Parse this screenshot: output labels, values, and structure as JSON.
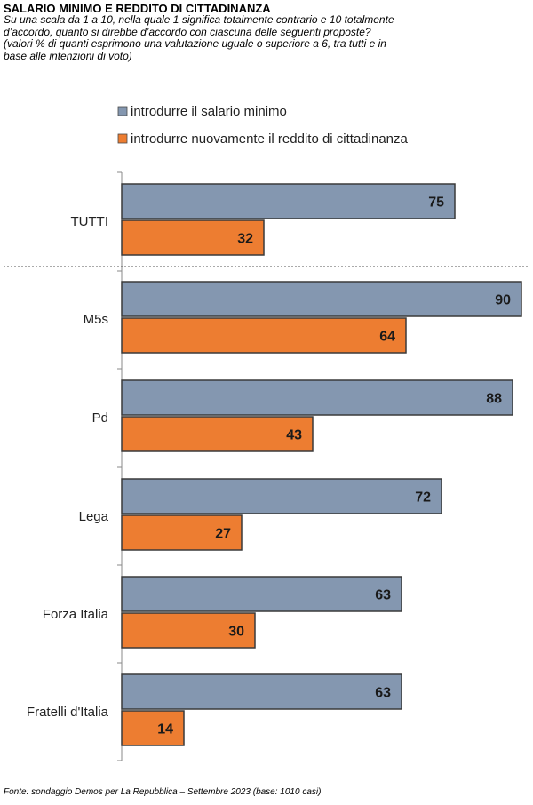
{
  "header": {
    "title": "SALARIO MINIMO E REDDITO DI CITTADINANZA",
    "subtitle_lines": [
      "Su una scala da 1 a 10, nella quale 1 significa totalmente contrario e 10 totalmente",
      "d’accordo, quanto si direbbe d’accordo con ciascuna delle seguenti proposte?",
      "(valori % di quanti esprimono una valutazione uguale o superiore a 6, tra tutti e in",
      "base alle intenzioni di voto)"
    ]
  },
  "footer": {
    "source": "Fonte: sondaggio Demos per La Repubblica – Settembre 2023 (base: 1010 casi)"
  },
  "chart_data": {
    "type": "bar",
    "orientation": "horizontal",
    "categories": [
      "TUTTI",
      "M5s",
      "Pd",
      "Lega",
      "Forza Italia",
      "Fratelli d'Italia"
    ],
    "series": [
      {
        "name": "introdurre il salario minimo",
        "color": "#8497b0",
        "values": [
          75,
          90,
          88,
          72,
          63,
          63
        ]
      },
      {
        "name": "introdurre nuovamente il reddito di cittadinanza",
        "color": "#ed7d31",
        "values": [
          32,
          64,
          43,
          27,
          30,
          14
        ]
      }
    ],
    "xlim": [
      0,
      90
    ],
    "legend_position": "top",
    "data_labels": true,
    "separator_after_first_category": true
  }
}
